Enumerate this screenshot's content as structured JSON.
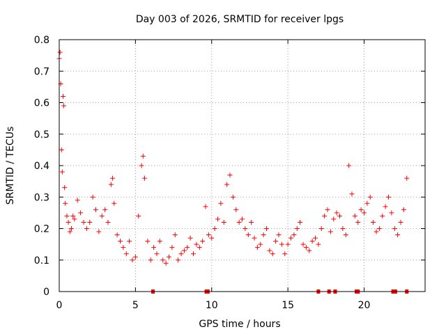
{
  "chart_data": {
    "type": "scatter",
    "title": "Day 003 of 2026, SRMTID for receiver lpgs",
    "xlabel": "GPS time / hours",
    "ylabel": "SRMTID / TECUs",
    "xlim": [
      0,
      24
    ],
    "ylim": [
      0,
      0.8
    ],
    "xticks": [
      0,
      5,
      10,
      15,
      20
    ],
    "yticks": [
      0,
      0.1,
      0.2,
      0.3,
      0.4,
      0.5,
      0.6,
      0.7,
      0.8
    ],
    "grid": true,
    "marker": "+",
    "series": [
      {
        "name": "SRMTID",
        "color": "#ff0000",
        "x": [
          0.0,
          0.05,
          0.1,
          0.15,
          0.2,
          0.25,
          0.3,
          0.35,
          0.4,
          0.5,
          0.6,
          0.7,
          0.8,
          0.9,
          1.0,
          1.2,
          1.4,
          1.6,
          1.8,
          2.0,
          2.2,
          2.4,
          2.6,
          2.8,
          3.0,
          3.2,
          3.4,
          3.5,
          3.6,
          3.8,
          4.0,
          4.2,
          4.4,
          4.6,
          4.8,
          5.0,
          5.2,
          5.4,
          5.5,
          5.6,
          5.8,
          6.0,
          6.2,
          6.4,
          6.6,
          6.8,
          7.0,
          7.2,
          7.4,
          7.6,
          7.8,
          8.0,
          8.2,
          8.4,
          8.6,
          8.8,
          9.0,
          9.2,
          9.4,
          9.6,
          9.8,
          10.0,
          10.2,
          10.4,
          10.6,
          10.8,
          11.0,
          11.2,
          11.4,
          11.6,
          11.8,
          12.0,
          12.2,
          12.4,
          12.6,
          12.8,
          13.0,
          13.2,
          13.4,
          13.6,
          13.8,
          14.0,
          14.2,
          14.4,
          14.6,
          14.8,
          15.0,
          15.2,
          15.4,
          15.6,
          15.8,
          16.0,
          16.2,
          16.4,
          16.6,
          16.8,
          17.0,
          17.2,
          17.4,
          17.6,
          17.8,
          18.0,
          18.2,
          18.4,
          18.6,
          18.8,
          19.0,
          19.2,
          19.4,
          19.6,
          19.8,
          20.0,
          20.2,
          20.4,
          20.6,
          20.8,
          21.0,
          21.2,
          21.4,
          21.6,
          21.8,
          22.0,
          22.2,
          22.4,
          22.6,
          22.8
        ],
        "y": [
          0.74,
          0.76,
          0.66,
          0.45,
          0.38,
          0.62,
          0.59,
          0.33,
          0.28,
          0.24,
          0.22,
          0.19,
          0.2,
          0.24,
          0.23,
          0.29,
          0.25,
          0.22,
          0.2,
          0.22,
          0.3,
          0.26,
          0.19,
          0.24,
          0.26,
          0.22,
          0.34,
          0.36,
          0.28,
          0.18,
          0.16,
          0.14,
          0.12,
          0.16,
          0.1,
          0.11,
          0.24,
          0.4,
          0.43,
          0.36,
          0.16,
          0.1,
          0.14,
          0.12,
          0.16,
          0.1,
          0.09,
          0.11,
          0.14,
          0.18,
          0.1,
          0.12,
          0.13,
          0.14,
          0.17,
          0.12,
          0.15,
          0.14,
          0.16,
          0.27,
          0.18,
          0.17,
          0.2,
          0.23,
          0.28,
          0.22,
          0.34,
          0.37,
          0.3,
          0.26,
          0.22,
          0.23,
          0.2,
          0.18,
          0.22,
          0.17,
          0.14,
          0.15,
          0.18,
          0.2,
          0.13,
          0.12,
          0.16,
          0.18,
          0.15,
          0.12,
          0.15,
          0.17,
          0.18,
          0.2,
          0.22,
          0.15,
          0.14,
          0.13,
          0.16,
          0.17,
          0.15,
          0.2,
          0.24,
          0.26,
          0.19,
          0.23,
          0.25,
          0.24,
          0.2,
          0.18,
          0.4,
          0.31,
          0.24,
          0.22,
          0.26,
          0.25,
          0.28,
          0.3,
          0.22,
          0.19,
          0.2,
          0.24,
          0.27,
          0.3,
          0.25,
          0.2,
          0.18,
          0.22,
          0.26,
          0.36
        ]
      }
    ],
    "zero_markers_x": [
      6.15,
      9.65,
      9.75,
      17.0,
      17.7,
      18.1,
      19.5,
      19.6,
      21.9,
      22.05,
      22.8
    ]
  }
}
